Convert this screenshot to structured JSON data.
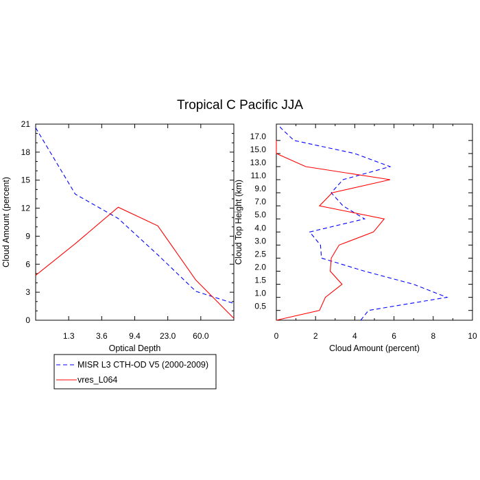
{
  "title": "Tropical C Pacific JJA",
  "chart_data": [
    {
      "type": "line",
      "xlabel": "Optical Depth",
      "ylabel": "Cloud Amount (percent)",
      "x_tick_labels": [
        "1.3",
        "3.6",
        "9.4",
        "23.0",
        "60.0"
      ],
      "x_tick_positions": [
        1,
        2,
        3,
        4,
        5
      ],
      "x_range": [
        0,
        6
      ],
      "ylim": [
        0,
        21
      ],
      "y_ticks": [
        0,
        3,
        6,
        9,
        12,
        15,
        18,
        21
      ],
      "grid": false,
      "series": [
        {
          "name": "MISR L3 CTH-OD V5 (2000-2009)",
          "color": "#0000ff",
          "dash": "dashed",
          "x": [
            0,
            1.2,
            2.5,
            3.7,
            4.85,
            6
          ],
          "y": [
            20.6,
            13.5,
            10.9,
            7.0,
            3.1,
            1.8
          ]
        },
        {
          "name": "vres_L064",
          "color": "#ff0000",
          "dash": "solid",
          "x": [
            0,
            1.2,
            2.5,
            3.7,
            4.85,
            6
          ],
          "y": [
            4.8,
            8.2,
            12.1,
            10.1,
            4.3,
            0.2
          ]
        }
      ]
    },
    {
      "type": "line",
      "xlabel": "Cloud Amount (percent)",
      "ylabel": "Cloud Top Height (km)",
      "xlim": [
        0,
        10
      ],
      "x_ticks": [
        0,
        2,
        4,
        6,
        8,
        10
      ],
      "y_tick_labels": [
        "0.5",
        "1.0",
        "1.5",
        "2.0",
        "2.5",
        "3.0",
        "4.0",
        "5.0",
        "7.0",
        "9.0",
        "11.0",
        "13.0",
        "15.0",
        "17.0"
      ],
      "y_level_range": [
        0,
        15
      ],
      "grid": false,
      "series": [
        {
          "name": "MISR L3 CTH-OD V5 (2000-2009)",
          "color": "#0000ff",
          "dash": "dashed",
          "y_level": [
            0,
            0.75,
            1.75,
            2.75,
            3.75,
            4.75,
            5.75,
            6.75,
            7.75,
            8.75,
            9.75,
            10.75,
            11.75,
            12.75,
            13.75,
            14.75,
            15
          ],
          "x": [
            4.3,
            4.7,
            8.7,
            7.0,
            4.5,
            2.3,
            2.25,
            1.7,
            4.5,
            3.4,
            2.8,
            3.4,
            5.8,
            4.0,
            0.9,
            0.2,
            0.2
          ]
        },
        {
          "name": "vres_L064",
          "color": "#ff0000",
          "dash": "solid",
          "y_level": [
            0,
            0.75,
            1.75,
            2.75,
            3.75,
            4.75,
            5.75,
            6.75,
            7.75,
            8.75,
            9.75,
            10.75,
            11.75,
            12.75,
            13.75
          ],
          "x": [
            0,
            2.2,
            2.5,
            3.35,
            2.75,
            2.8,
            3.2,
            4.95,
            5.5,
            2.2,
            2.85,
            5.8,
            1.5,
            0,
            0
          ]
        }
      ]
    }
  ],
  "legend": {
    "placement": "bottom-left",
    "items": [
      {
        "label": "MISR L3 CTH-OD V5 (2000-2009)",
        "color": "#0000ff",
        "dash": "dashed"
      },
      {
        "label": "vres_L064",
        "color": "#ff0000",
        "dash": "solid"
      }
    ]
  }
}
